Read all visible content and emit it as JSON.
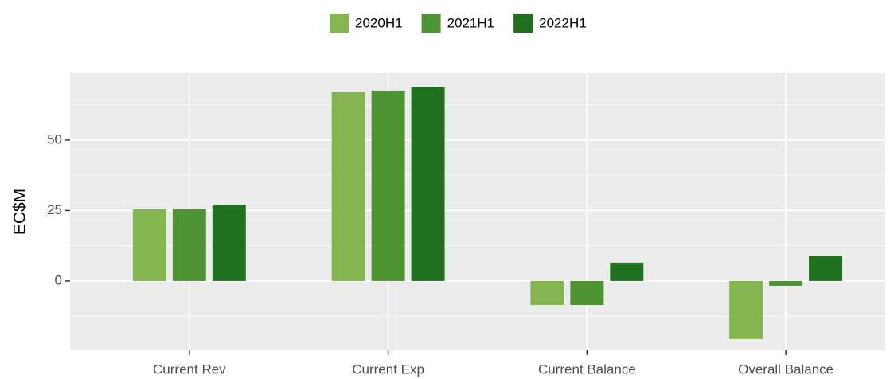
{
  "chart_data": {
    "type": "bar",
    "categories": [
      "Current Rev",
      "Current Exp",
      "Current Balance",
      "Overall Balance"
    ],
    "series": [
      {
        "name": "2020H1",
        "color": "#84b550",
        "values": [
          25.4,
          67.0,
          -8.5,
          -20.6
        ]
      },
      {
        "name": "2021H1",
        "color": "#4e9434",
        "values": [
          25.4,
          67.5,
          -8.5,
          -1.7
        ]
      },
      {
        "name": "2022H1",
        "color": "#1f711f",
        "values": [
          27.1,
          68.9,
          6.5,
          9.0
        ]
      }
    ],
    "y_label": "EC$M",
    "ylim": [
      -24.6,
      73.7
    ],
    "yticks": [
      0,
      25,
      50
    ],
    "grid": true,
    "legend": "top"
  }
}
